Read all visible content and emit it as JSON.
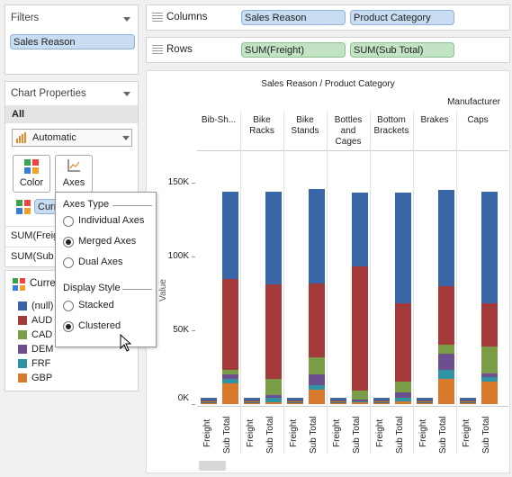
{
  "filters": {
    "title": "Filters",
    "pill": "Sales Reason"
  },
  "chart_props": {
    "title": "Chart Properties",
    "tab": "All",
    "mark_type": "Automatic",
    "color_label": "Color",
    "axes_label": "Axes",
    "curr_pill": "Curr"
  },
  "measures": {
    "freight": "SUM(Freig",
    "subtotal": "SUM(Sub T"
  },
  "legend": {
    "title": "Curre",
    "items": [
      {
        "label": "(null)",
        "color": "#3a66a8"
      },
      {
        "label": "AUD",
        "color": "#a33b3b"
      },
      {
        "label": "CAD",
        "color": "#7a9d45"
      },
      {
        "label": "DEM",
        "color": "#6b4f8e"
      },
      {
        "label": "FRF",
        "color": "#2f93a1"
      },
      {
        "label": "GBP",
        "color": "#d87a2c"
      }
    ]
  },
  "popup": {
    "axes_type_title": "Axes Type",
    "axes_options": [
      "Individual Axes",
      "Merged Axes",
      "Dual Axes"
    ],
    "axes_selected": 1,
    "display_title": "Display Style",
    "display_options": [
      "Stacked",
      "Clustered"
    ],
    "display_selected": 1
  },
  "shelves": {
    "columns_label": "Columns",
    "rows_label": "Rows",
    "col_pills": [
      "Sales Reason",
      "Product Category"
    ],
    "row_pills": [
      "SUM(Freight)",
      "SUM(Sub Total)"
    ]
  },
  "chart": {
    "title": "Sales Reason / Product Category",
    "subheader": "Manufacturer",
    "ylabel": "Value",
    "x_labels": [
      "Freight",
      "Sub Total"
    ]
  },
  "chart_data": {
    "type": "bar",
    "stacked": true,
    "title": "Sales Reason / Product Category",
    "categories": [
      "Bib-Sh...",
      "Bike Racks",
      "Bike Stands",
      "Bottles and Cages",
      "Bottom Brackets",
      "Brakes",
      "Caps"
    ],
    "ylim": [
      0,
      160000
    ],
    "yticks": [
      "0K",
      "50K",
      "100K",
      "150K"
    ],
    "ytick_values": [
      0,
      50000,
      100000,
      150000
    ],
    "sub_categories": [
      "Freight",
      "Sub Total"
    ],
    "series_order": [
      "GBP",
      "FRF",
      "DEM",
      "CAD",
      "AUD",
      "(null)"
    ],
    "values": {
      "freight": [
        [
          800,
          400,
          300,
          500,
          600,
          1600
        ],
        [
          800,
          400,
          300,
          500,
          600,
          1600
        ],
        [
          800,
          400,
          300,
          500,
          600,
          1600
        ],
        [
          800,
          400,
          300,
          500,
          600,
          1600
        ],
        [
          800,
          400,
          300,
          500,
          600,
          1600
        ],
        [
          800,
          400,
          300,
          500,
          600,
          1600
        ],
        [
          800,
          400,
          300,
          500,
          600,
          1600
        ]
      ],
      "subtotal": [
        [
          14000,
          3000,
          3000,
          3000,
          62000,
          59000
        ],
        [
          1500,
          2500,
          2000,
          11000,
          64000,
          63000
        ],
        [
          10000,
          3000,
          7000,
          12000,
          50000,
          64000
        ],
        [
          1000,
          1000,
          1000,
          6000,
          84000,
          50000
        ],
        [
          2000,
          2000,
          4000,
          7000,
          53000,
          75000
        ],
        [
          17000,
          6000,
          11000,
          6000,
          40000,
          65000
        ],
        [
          15000,
          3000,
          3000,
          18000,
          29000,
          76000
        ]
      ]
    }
  }
}
